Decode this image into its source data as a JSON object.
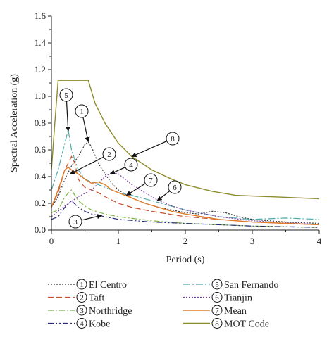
{
  "chart_data": {
    "type": "line",
    "xlabel": "Period (s)",
    "ylabel": "Spectral Acceleration (g)",
    "xlim": [
      0,
      4
    ],
    "ylim": [
      0,
      1.6
    ],
    "xticks": [
      "0",
      "1",
      "2",
      "3",
      "4"
    ],
    "yticks": [
      "0.0",
      "0.2",
      "0.4",
      "0.6",
      "0.8",
      "1.0",
      "1.2",
      "1.4",
      "1.6"
    ],
    "grid": false,
    "legend_placement": "bottom",
    "series": [
      {
        "key": "1",
        "name": "El Centro",
        "color": "#333333",
        "dash": "2,2",
        "points": [
          [
            0,
            0.17
          ],
          [
            0.1,
            0.25
          ],
          [
            0.2,
            0.38
          ],
          [
            0.3,
            0.48
          ],
          [
            0.4,
            0.55
          ],
          [
            0.5,
            0.64
          ],
          [
            0.55,
            0.66
          ],
          [
            0.6,
            0.62
          ],
          [
            0.7,
            0.5
          ],
          [
            0.8,
            0.42
          ],
          [
            0.9,
            0.35
          ],
          [
            1.0,
            0.3
          ],
          [
            1.2,
            0.24
          ],
          [
            1.4,
            0.2
          ],
          [
            1.6,
            0.17
          ],
          [
            1.8,
            0.15
          ],
          [
            2.0,
            0.13
          ],
          [
            2.2,
            0.12
          ],
          [
            2.4,
            0.14
          ],
          [
            2.6,
            0.13
          ],
          [
            2.8,
            0.1
          ],
          [
            3.0,
            0.08
          ],
          [
            3.5,
            0.06
          ],
          [
            4.0,
            0.05
          ]
        ]
      },
      {
        "key": "2",
        "name": "Taft",
        "color": "#c8502a",
        "dash": "8,4",
        "points": [
          [
            0,
            0.17
          ],
          [
            0.1,
            0.28
          ],
          [
            0.2,
            0.45
          ],
          [
            0.3,
            0.55
          ],
          [
            0.35,
            0.5
          ],
          [
            0.4,
            0.38
          ],
          [
            0.5,
            0.32
          ],
          [
            0.6,
            0.3
          ],
          [
            0.7,
            0.28
          ],
          [
            0.8,
            0.25
          ],
          [
            1.0,
            0.2
          ],
          [
            1.2,
            0.17
          ],
          [
            1.5,
            0.14
          ],
          [
            2.0,
            0.1
          ],
          [
            2.5,
            0.08
          ],
          [
            3.0,
            0.06
          ],
          [
            4.0,
            0.04
          ]
        ]
      },
      {
        "key": "3",
        "name": "Northridge",
        "color": "#7cb342",
        "dash": "8,3,2,3",
        "points": [
          [
            0,
            0.13
          ],
          [
            0.1,
            0.15
          ],
          [
            0.2,
            0.25
          ],
          [
            0.3,
            0.3
          ],
          [
            0.4,
            0.22
          ],
          [
            0.5,
            0.18
          ],
          [
            0.6,
            0.15
          ],
          [
            0.8,
            0.12
          ],
          [
            1.0,
            0.1
          ],
          [
            1.5,
            0.07
          ],
          [
            2.0,
            0.05
          ],
          [
            2.5,
            0.04
          ],
          [
            3.0,
            0.03
          ],
          [
            4.0,
            0.02
          ]
        ]
      },
      {
        "key": "4",
        "name": "Kobe",
        "color": "#2c2a7a",
        "dash": "8,3,2,3,2,3",
        "points": [
          [
            0,
            0.08
          ],
          [
            0.1,
            0.1
          ],
          [
            0.2,
            0.17
          ],
          [
            0.3,
            0.22
          ],
          [
            0.4,
            0.17
          ],
          [
            0.5,
            0.14
          ],
          [
            0.6,
            0.12
          ],
          [
            0.8,
            0.1
          ],
          [
            1.0,
            0.08
          ],
          [
            1.5,
            0.06
          ],
          [
            2.0,
            0.05
          ],
          [
            3.0,
            0.03
          ],
          [
            4.0,
            0.02
          ]
        ]
      },
      {
        "key": "5",
        "name": "San Fernando",
        "color": "#4fa8a8",
        "dash": "10,3,2,3",
        "points": [
          [
            0,
            0.3
          ],
          [
            0.1,
            0.45
          ],
          [
            0.2,
            0.65
          ],
          [
            0.25,
            0.75
          ],
          [
            0.3,
            0.6
          ],
          [
            0.4,
            0.45
          ],
          [
            0.5,
            0.38
          ],
          [
            0.7,
            0.34
          ],
          [
            0.9,
            0.3
          ],
          [
            1.0,
            0.28
          ],
          [
            1.2,
            0.26
          ],
          [
            1.5,
            0.22
          ],
          [
            2.0,
            0.15
          ],
          [
            2.5,
            0.1
          ],
          [
            3.0,
            0.08
          ],
          [
            3.5,
            0.09
          ],
          [
            4.0,
            0.08
          ]
        ]
      },
      {
        "key": "6",
        "name": "Tianjin",
        "color": "#7b3fa0",
        "dash": "2,2",
        "points": [
          [
            0,
            0.1
          ],
          [
            0.2,
            0.18
          ],
          [
            0.4,
            0.25
          ],
          [
            0.6,
            0.3
          ],
          [
            0.8,
            0.4
          ],
          [
            0.9,
            0.43
          ],
          [
            1.0,
            0.42
          ],
          [
            1.1,
            0.38
          ],
          [
            1.2,
            0.34
          ],
          [
            1.4,
            0.28
          ],
          [
            1.6,
            0.22
          ],
          [
            1.8,
            0.18
          ],
          [
            2.0,
            0.15
          ],
          [
            2.5,
            0.1
          ],
          [
            3.0,
            0.07
          ],
          [
            4.0,
            0.04
          ]
        ]
      },
      {
        "key": "7",
        "name": "Mean",
        "color": "#e07b27",
        "dash": "",
        "points": [
          [
            0,
            0.17
          ],
          [
            0.1,
            0.3
          ],
          [
            0.2,
            0.45
          ],
          [
            0.25,
            0.47
          ],
          [
            0.3,
            0.45
          ],
          [
            0.4,
            0.42
          ],
          [
            0.5,
            0.38
          ],
          [
            0.6,
            0.35
          ],
          [
            0.7,
            0.36
          ],
          [
            0.8,
            0.34
          ],
          [
            0.9,
            0.3
          ],
          [
            1.0,
            0.28
          ],
          [
            1.2,
            0.24
          ],
          [
            1.4,
            0.2
          ],
          [
            1.6,
            0.17
          ],
          [
            1.8,
            0.14
          ],
          [
            2.0,
            0.12
          ],
          [
            2.5,
            0.08
          ],
          [
            3.0,
            0.06
          ],
          [
            3.5,
            0.05
          ],
          [
            4.0,
            0.04
          ]
        ]
      },
      {
        "key": "8",
        "name": "MOT Code",
        "color": "#8c8c2c",
        "dash": "",
        "points": [
          [
            0,
            0.45
          ],
          [
            0.05,
            0.8
          ],
          [
            0.1,
            1.12
          ],
          [
            0.55,
            1.12
          ],
          [
            0.65,
            0.95
          ],
          [
            0.8,
            0.8
          ],
          [
            1.0,
            0.65
          ],
          [
            1.2,
            0.55
          ],
          [
            1.5,
            0.45
          ],
          [
            1.8,
            0.38
          ],
          [
            2.0,
            0.34
          ],
          [
            2.4,
            0.29
          ],
          [
            2.75,
            0.26
          ],
          [
            3.0,
            0.255
          ],
          [
            3.5,
            0.245
          ],
          [
            4.0,
            0.235
          ]
        ]
      }
    ]
  }
}
